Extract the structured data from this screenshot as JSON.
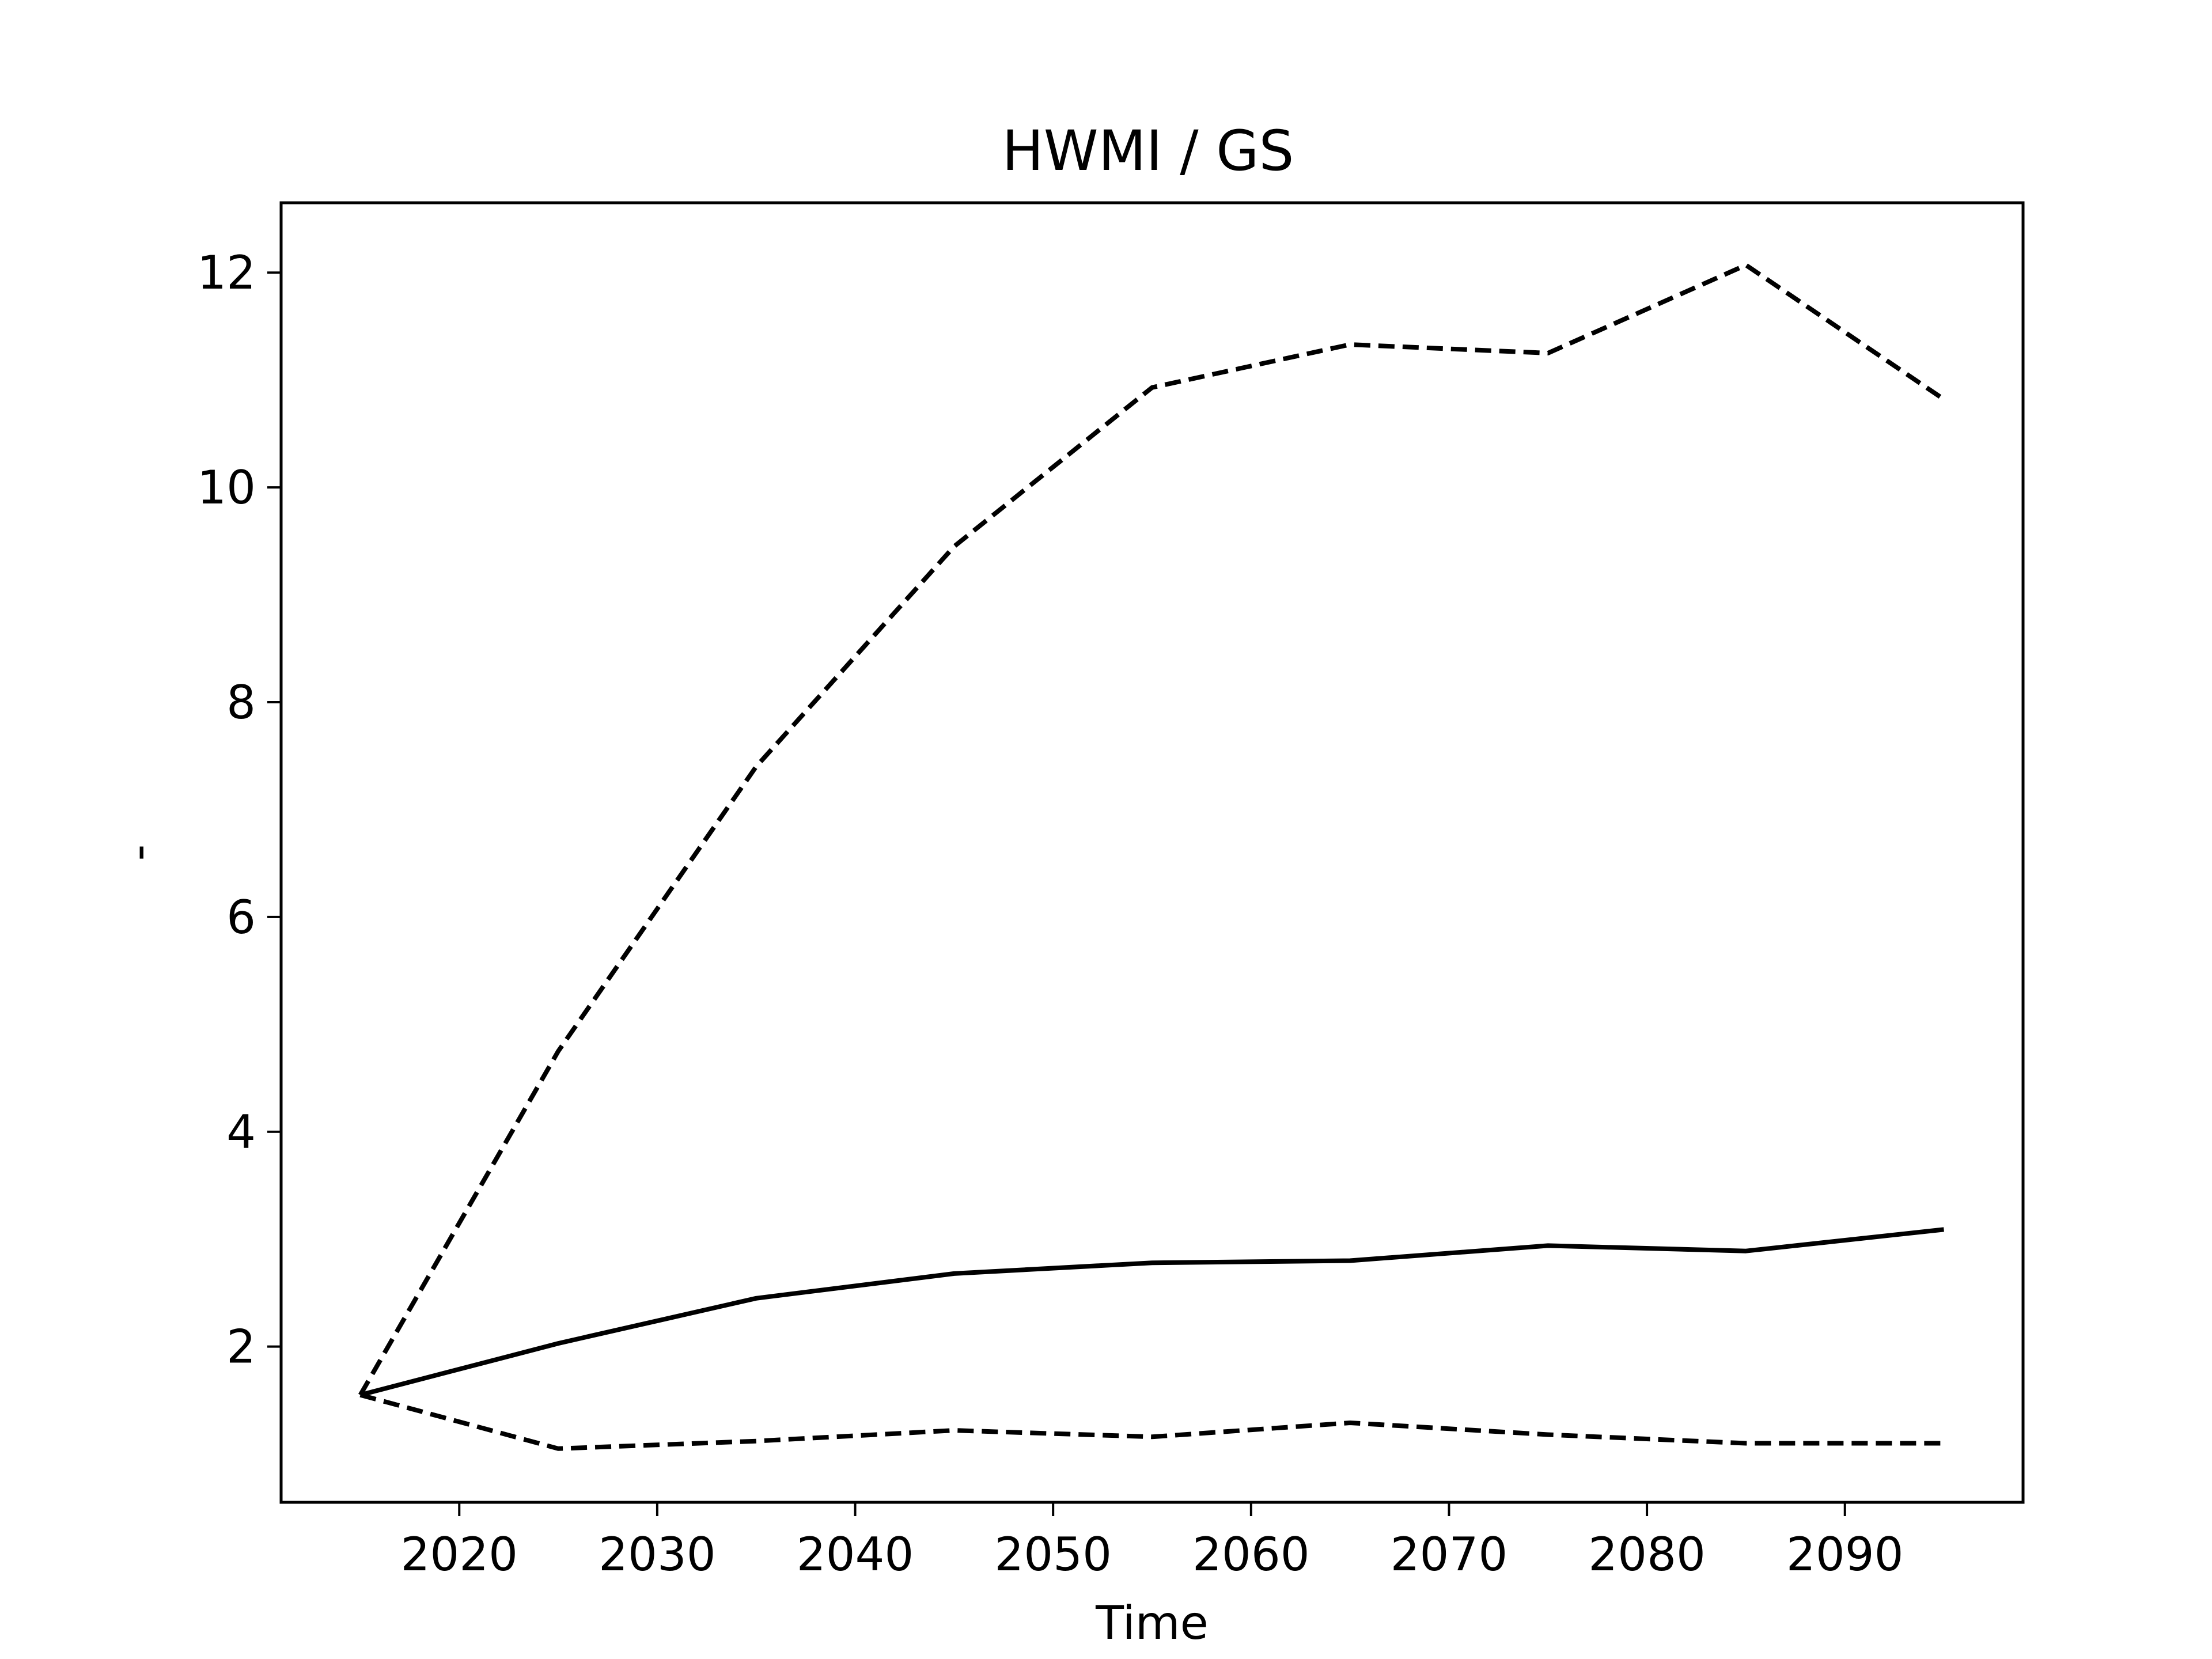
{
  "chart_data": {
    "type": "line",
    "title": "HWMI / GS",
    "xlabel": "Time",
    "ylabel": "-",
    "xlim": [
      2011,
      2099
    ],
    "ylim": [
      0.55,
      12.65
    ],
    "xticks": [
      2020,
      2030,
      2040,
      2050,
      2060,
      2070,
      2080,
      2090
    ],
    "yticks": [
      2,
      4,
      6,
      8,
      10,
      12
    ],
    "grid": false,
    "legend": "none",
    "x": [
      2015,
      2025,
      2035,
      2045,
      2055,
      2065,
      2075,
      2085,
      2095
    ],
    "series": [
      {
        "style": "dashed",
        "color": "#000000",
        "values": [
          1.55,
          4.75,
          7.4,
          9.45,
          10.93,
          11.33,
          11.25,
          12.07,
          10.82
        ]
      },
      {
        "style": "solid",
        "color": "#000000",
        "values": [
          1.55,
          2.03,
          2.45,
          2.68,
          2.78,
          2.8,
          2.94,
          2.89,
          3.09
        ]
      },
      {
        "style": "dashed",
        "color": "#000000",
        "values": [
          1.55,
          1.05,
          1.12,
          1.22,
          1.16,
          1.29,
          1.18,
          1.1,
          1.1
        ]
      }
    ]
  }
}
